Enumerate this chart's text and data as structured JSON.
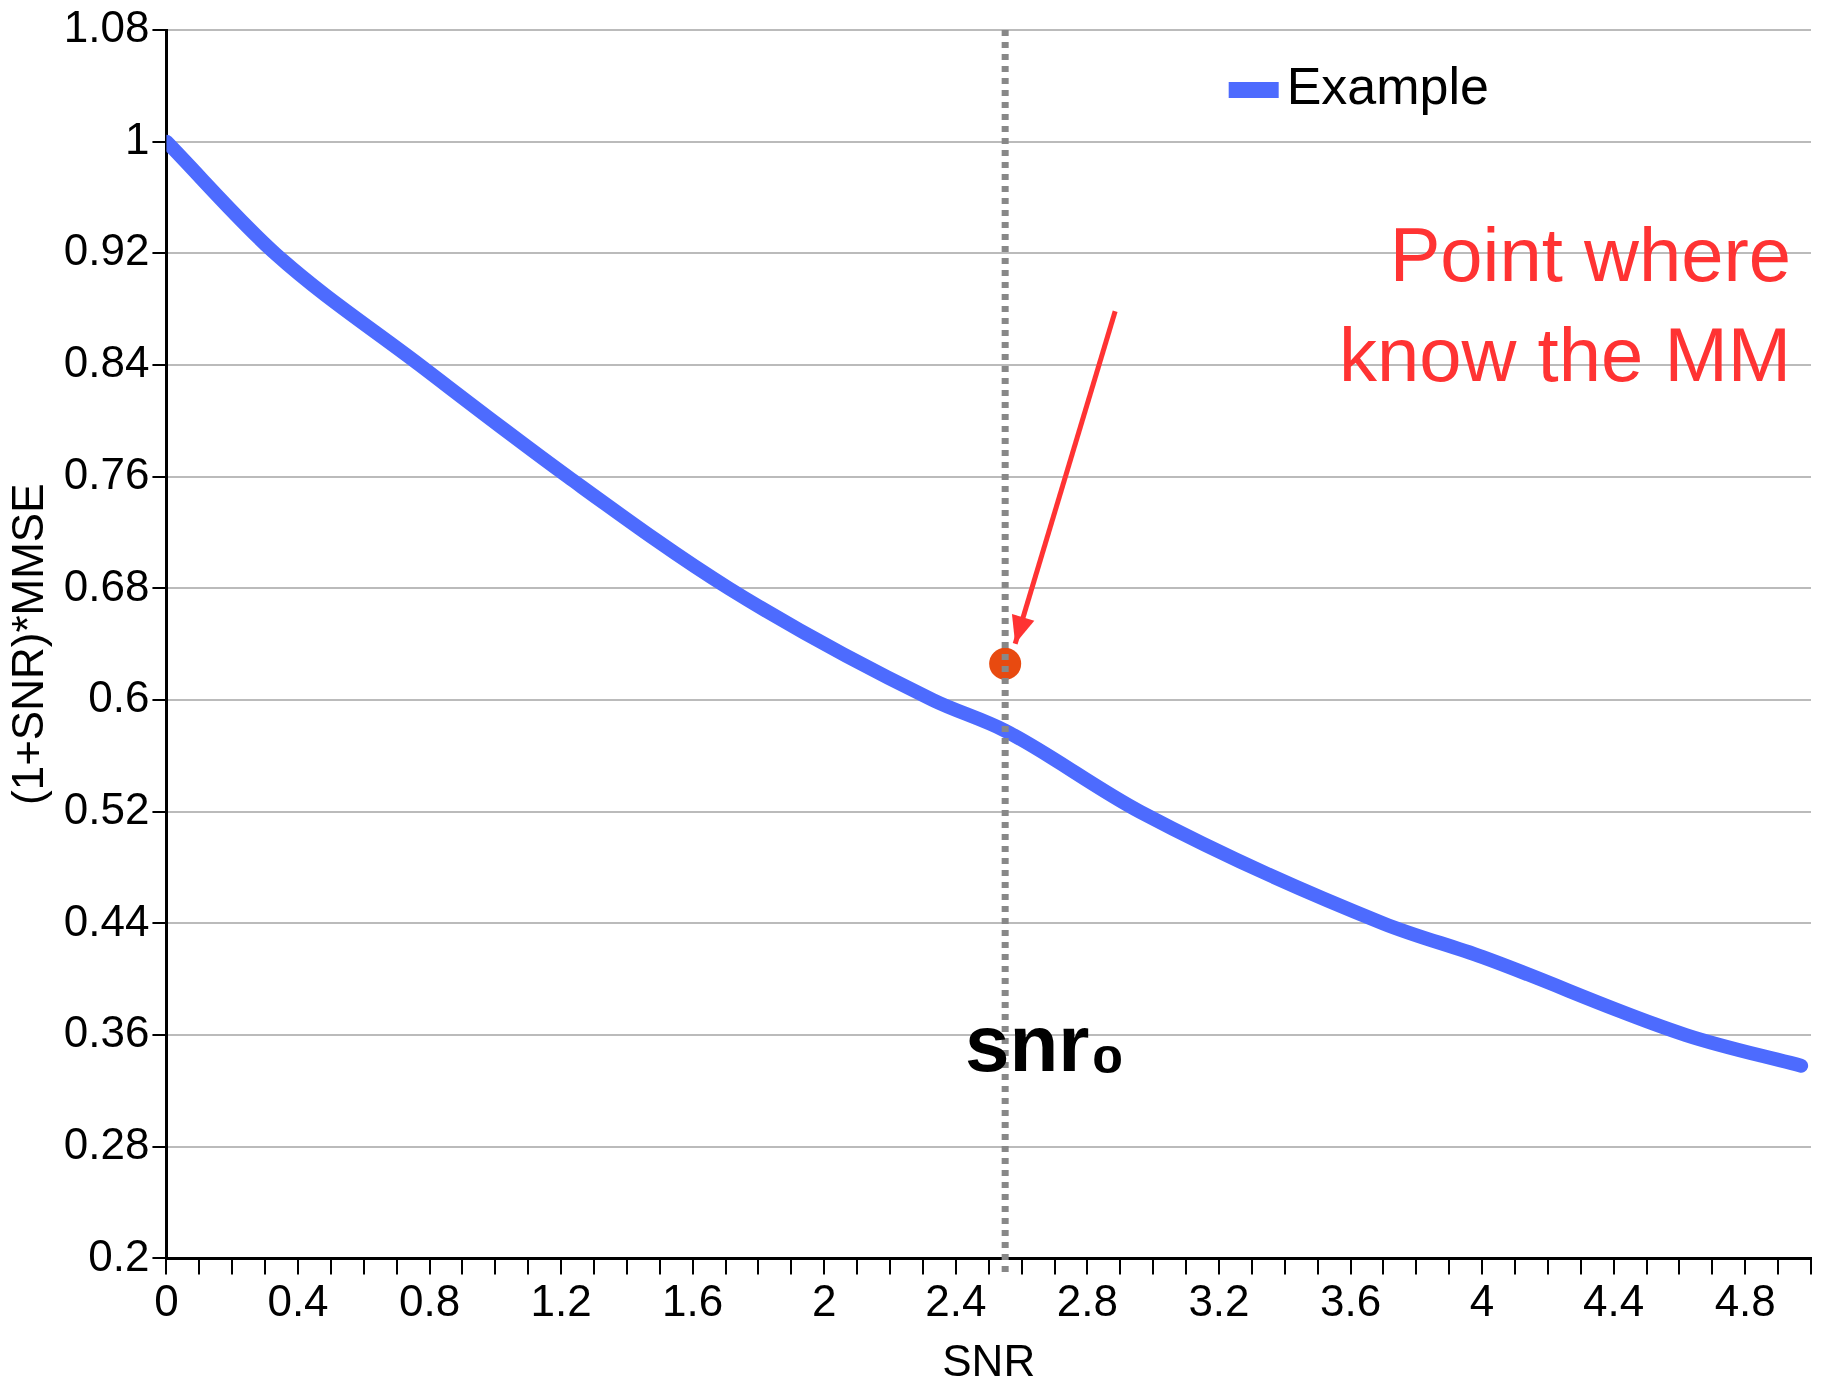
{
  "chart_data": {
    "type": "line",
    "xlabel": "SNR",
    "ylabel": "(1+SNR)*MMSE",
    "legend": "top right",
    "grid": "y",
    "line_style": "solid",
    "marker": "none",
    "xlim": [
      0,
      5
    ],
    "xticks": [
      0,
      {
        "value": 0.1,
        "label": null
      },
      {
        "value": 0.2,
        "label": null
      },
      {
        "value": 0.3,
        "label": null
      },
      0.4,
      {
        "value": 0.5,
        "label": null
      },
      {
        "value": 0.6,
        "label": null
      },
      {
        "value": 0.7,
        "label": null
      },
      0.8,
      {
        "value": 0.9,
        "label": null
      },
      {
        "value": 1,
        "label": null
      },
      {
        "value": 1.1,
        "label": null
      },
      1.2,
      {
        "value": 1.3,
        "label": null
      },
      {
        "value": 1.4,
        "label": null
      },
      {
        "value": 1.5,
        "label": null
      },
      1.6,
      {
        "value": 1.7,
        "label": null
      },
      {
        "value": 1.8,
        "label": null
      },
      {
        "value": 1.9,
        "label": null
      },
      2,
      {
        "value": 2.1,
        "label": null
      },
      {
        "value": 2.2,
        "label": null
      },
      {
        "value": 2.3,
        "label": null
      },
      2.4,
      {
        "value": 2.5,
        "label": null
      },
      {
        "value": 2.6,
        "label": null
      },
      {
        "value": 2.7,
        "label": null
      },
      2.8,
      {
        "value": 2.9,
        "label": null
      },
      {
        "value": 3,
        "label": null
      },
      {
        "value": 3.1,
        "label": null
      },
      3.2,
      {
        "value": 3.3,
        "label": null
      },
      {
        "value": 3.4,
        "label": null
      },
      {
        "value": 3.5,
        "label": null
      },
      3.6,
      {
        "value": 3.7,
        "label": null
      },
      {
        "value": 3.8,
        "label": null
      },
      {
        "value": 3.9,
        "label": null
      },
      4,
      {
        "value": 4.1,
        "label": null
      },
      {
        "value": 4.2,
        "label": null
      },
      {
        "value": 4.3,
        "label": null
      },
      4.4,
      {
        "value": 4.5,
        "label": null
      },
      {
        "value": 4.6,
        "label": null
      },
      {
        "value": 4.7,
        "label": null
      },
      4.8,
      {
        "value": 4.9,
        "label": null
      },
      {
        "value": 5,
        "label": null
      }
    ],
    "ylim": [
      0.2,
      1.08
    ],
    "yticks": [
      0.2,
      0.28,
      0.36,
      0.44,
      0.52,
      0.6,
      0.68,
      0.76,
      0.84,
      0.92,
      1,
      1.08
    ],
    "series": [
      {
        "name": "Example",
        "color": "#4d6bfe",
        "x": [
          0,
          0.33,
          0.77,
          1.22,
          1.71,
          2.33,
          2.55,
          2.96,
          3.7,
          4,
          4.62,
          4.97
        ],
        "values": [
          1,
          0.92,
          0.84,
          0.76,
          0.68,
          0.6,
          0.578,
          0.52,
          0.44,
          0.416,
          0.36,
          0.338
        ]
      },
      {
        "type": "scatter",
        "color": "#e84a10",
        "x": [
          2.55
        ],
        "values": [
          0.626
        ],
        "marker": "circle"
      }
    ],
    "ref_lines": [
      {
        "axis": "x",
        "value": 2.55,
        "label": "snr₀",
        "color": "#888888",
        "line_style": "dotted"
      }
    ],
    "annotations": [
      "Point where\nknow the MM"
    ]
  }
}
